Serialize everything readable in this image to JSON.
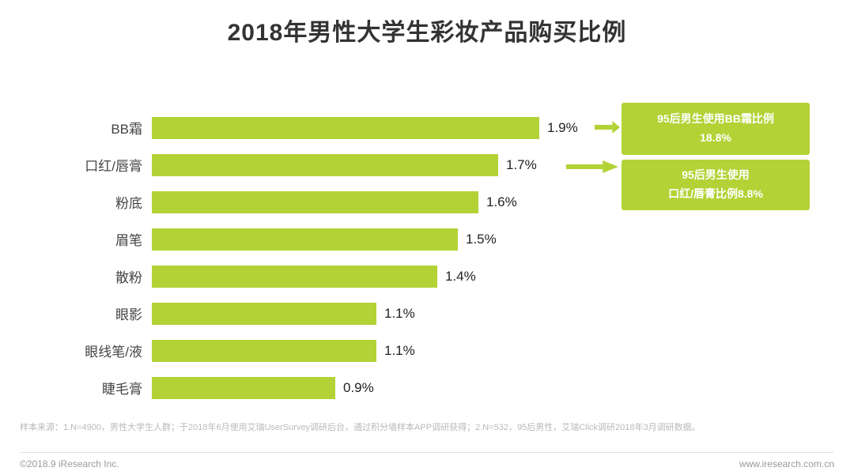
{
  "title": "2018年男性大学生彩妆产品购买比例",
  "chart_data": {
    "type": "bar",
    "orientation": "horizontal",
    "title": "2018年男性大学生彩妆产品购买比例",
    "categories": [
      "BB霜",
      "口红/唇膏",
      "粉底",
      "眉笔",
      "散粉",
      "眼影",
      "眼线笔/液",
      "睫毛膏"
    ],
    "values": [
      1.9,
      1.7,
      1.6,
      1.5,
      1.4,
      1.1,
      1.1,
      0.9
    ],
    "value_labels": [
      "1.9%",
      "1.7%",
      "1.6%",
      "1.5%",
      "1.4%",
      "1.1%",
      "1.1%",
      "0.9%"
    ],
    "xlabel": "",
    "ylabel": "",
    "xlim": [
      0,
      1.9
    ],
    "grid": false,
    "legend": false,
    "bar_color": "#b3d235",
    "annotations": [
      {
        "target": "BB霜",
        "line1": "95后男生使用BB霜比例",
        "line2": "18.8%"
      },
      {
        "target": "口红/唇膏",
        "line1": "95后男生使用",
        "line2": "口红/唇膏比例8.8%"
      }
    ]
  },
  "footnote": "样本来源：1.N=4900，男性大学生人群；于2018年6月使用艾瑞UserSurvey调研后台，通过积分墙样本APP调研获得；2.N=532，95后男性，艾瑞Click调研2018年3月调研数据。",
  "footer": {
    "left": "©2018.9 iResearch Inc.",
    "right": "www.iresearch.com.cn"
  }
}
